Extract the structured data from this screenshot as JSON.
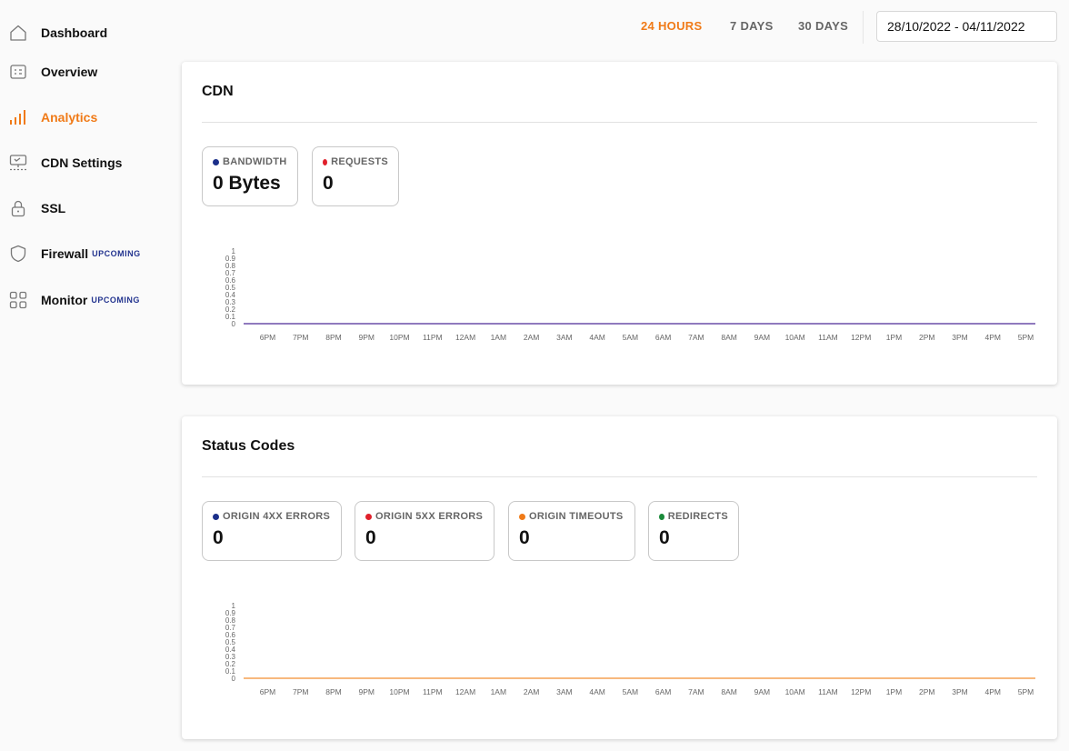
{
  "sidebar": {
    "items": [
      {
        "label": "Dashboard",
        "icon": "home-icon",
        "badge": ""
      },
      {
        "label": "Overview",
        "icon": "overview-icon",
        "badge": ""
      },
      {
        "label": "Analytics",
        "icon": "analytics-icon",
        "badge": ""
      },
      {
        "label": "CDN Settings",
        "icon": "cdn-settings-icon",
        "badge": ""
      },
      {
        "label": "SSL",
        "icon": "lock-icon",
        "badge": ""
      },
      {
        "label": "Firewall",
        "icon": "shield-icon",
        "badge": "UPCOMING"
      },
      {
        "label": "Monitor",
        "icon": "grid-icon",
        "badge": "UPCOMING"
      }
    ],
    "active_index": 2
  },
  "toolbar": {
    "ranges": [
      "24 HOURS",
      "7 DAYS",
      "30 DAYS"
    ],
    "active_range": "24 HOURS",
    "date_range": "28/10/2022 - 04/11/2022"
  },
  "colors": {
    "accent": "#f07a17",
    "badge": "#23348f",
    "blue": "#1b2f8a",
    "red": "#e0202b",
    "orange": "#f07a17",
    "green": "#1a8a3a",
    "cdn_line": "#6b4fa8",
    "status_line": "#f5a054"
  },
  "cdn": {
    "title": "CDN",
    "stats": [
      {
        "label": "BANDWIDTH",
        "value": "0 Bytes",
        "color": "#1b2f8a"
      },
      {
        "label": "REQUESTS",
        "value": "0",
        "color": "#e0202b"
      }
    ]
  },
  "status": {
    "title": "Status Codes",
    "stats": [
      {
        "label": "ORIGIN 4XX ERRORS",
        "value": "0",
        "color": "#1b2f8a"
      },
      {
        "label": "ORIGIN 5XX ERRORS",
        "value": "0",
        "color": "#e0202b"
      },
      {
        "label": "ORIGIN TIMEOUTS",
        "value": "0",
        "color": "#f07a17"
      },
      {
        "label": "REDIRECTS",
        "value": "0",
        "color": "#1a8a3a"
      }
    ]
  },
  "chart_data": [
    {
      "type": "line",
      "categories": [
        "6PM",
        "7PM",
        "8PM",
        "9PM",
        "10PM",
        "11PM",
        "12AM",
        "1AM",
        "2AM",
        "3AM",
        "4AM",
        "5AM",
        "6AM",
        "7AM",
        "8AM",
        "9AM",
        "10AM",
        "11AM",
        "12PM",
        "1PM",
        "2PM",
        "3PM",
        "4PM",
        "5PM"
      ],
      "yticks": [
        "0",
        "0.1",
        "0.2",
        "0.3",
        "0.4",
        "0.5",
        "0.6",
        "0.7",
        "0.8",
        "0.9",
        "1"
      ],
      "ylim": [
        0,
        1
      ],
      "series": [
        {
          "values": [
            0,
            0,
            0,
            0,
            0,
            0,
            0,
            0,
            0,
            0,
            0,
            0,
            0,
            0,
            0,
            0,
            0,
            0,
            0,
            0,
            0,
            0,
            0,
            0
          ],
          "color": "#6b4fa8"
        }
      ]
    },
    {
      "type": "line",
      "categories": [
        "6PM",
        "7PM",
        "8PM",
        "9PM",
        "10PM",
        "11PM",
        "12AM",
        "1AM",
        "2AM",
        "3AM",
        "4AM",
        "5AM",
        "6AM",
        "7AM",
        "8AM",
        "9AM",
        "10AM",
        "11AM",
        "12PM",
        "1PM",
        "2PM",
        "3PM",
        "4PM",
        "5PM"
      ],
      "yticks": [
        "0",
        "0.1",
        "0.2",
        "0.3",
        "0.4",
        "0.5",
        "0.6",
        "0.7",
        "0.8",
        "0.9",
        "1"
      ],
      "ylim": [
        0,
        1
      ],
      "series": [
        {
          "values": [
            0,
            0,
            0,
            0,
            0,
            0,
            0,
            0,
            0,
            0,
            0,
            0,
            0,
            0,
            0,
            0,
            0,
            0,
            0,
            0,
            0,
            0,
            0,
            0
          ],
          "color": "#f5a054"
        }
      ]
    }
  ]
}
